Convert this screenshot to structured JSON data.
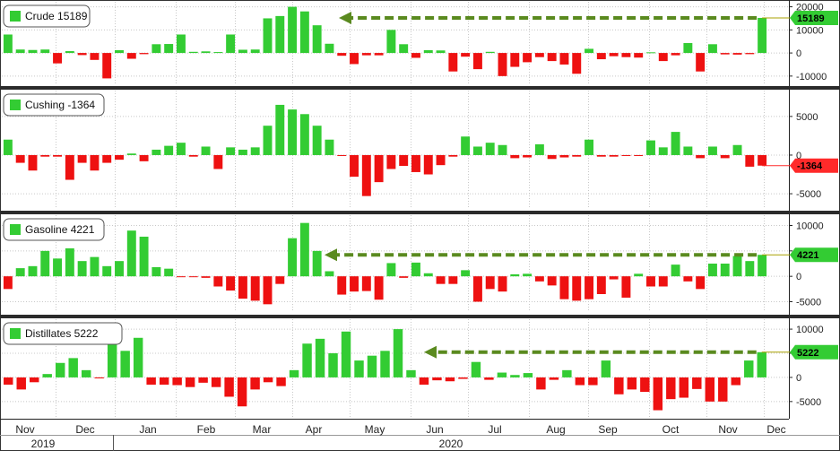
{
  "chart_data": {
    "type": "bar",
    "x_axis": {
      "months": [
        "Nov",
        "Dec",
        "Jan",
        "Feb",
        "Mar",
        "Apr",
        "May",
        "Jun",
        "Jul",
        "Aug",
        "Sep",
        "Oct",
        "Nov",
        "Dec"
      ],
      "years": [
        "2019",
        "2020"
      ]
    },
    "colors": {
      "positive": "#33cc33",
      "negative": "#ee1111",
      "arrow": "#5a8a1f",
      "bg": "#ffffff"
    },
    "panels": [
      {
        "name": "Crude",
        "label": "Crude  15189",
        "latest": "15189",
        "ylim": [
          -12000,
          21000
        ],
        "yticks": [
          -10000,
          0,
          10000,
          20000
        ],
        "arrow": true,
        "values": [
          8000,
          1500,
          1300,
          1500,
          -4500,
          800,
          -900,
          -3000,
          -11000,
          1200,
          -2500,
          -500,
          3800,
          3900,
          8000,
          500,
          700,
          400,
          8000,
          1400,
          1500,
          15000,
          16000,
          20000,
          18000,
          12000,
          4000,
          -1200,
          -4800,
          -1000,
          -1000,
          10000,
          3800,
          -2100,
          1200,
          1100,
          -8000,
          -1600,
          -7000,
          500,
          -10000,
          -6000,
          -4000,
          -1800,
          -3500,
          -5000,
          -9000,
          1800,
          -2700,
          -1400,
          -1800,
          -2000,
          300,
          -3500,
          -1000,
          4300,
          -8000,
          3800,
          -600,
          -700,
          -500,
          15189
        ]
      },
      {
        "name": "Cushing",
        "label": "Cushing -1364",
        "latest": "-1364",
        "ylim": [
          -6500,
          8000
        ],
        "yticks": [
          -5000,
          0,
          5000
        ],
        "arrow": false,
        "values": [
          2000,
          -1000,
          -2000,
          -200,
          -200,
          -3200,
          -1000,
          -2000,
          -1000,
          -600,
          200,
          -800,
          700,
          1200,
          1600,
          -200,
          1100,
          -1800,
          1000,
          700,
          1000,
          3800,
          6500,
          5900,
          5300,
          3800,
          2000,
          -100,
          -2800,
          -5300,
          -3500,
          -1800,
          -1400,
          -2200,
          -2500,
          -1300,
          -200,
          2400,
          1100,
          1600,
          1300,
          -400,
          -300,
          1400,
          -500,
          -300,
          -200,
          2000,
          -200,
          -200,
          -100,
          -100,
          1900,
          1000,
          3000,
          1100,
          -400,
          1100,
          -400,
          1300,
          -1500,
          -1364
        ]
      },
      {
        "name": "Gasoline",
        "label": "Gasoline  4221",
        "latest": "4221",
        "ylim": [
          -6500,
          11500
        ],
        "yticks": [
          -5000,
          0,
          5000,
          10000
        ],
        "arrow": true,
        "values": [
          -2500,
          1600,
          2000,
          5000,
          3500,
          5500,
          3000,
          3800,
          2000,
          3000,
          9000,
          7800,
          1800,
          1500,
          -100,
          -100,
          -300,
          -2000,
          -2800,
          -4400,
          -4800,
          -5500,
          -1500,
          7500,
          10500,
          5000,
          1000,
          -3600,
          -3000,
          -2900,
          -4600,
          2600,
          -300,
          2700,
          600,
          -1500,
          -1500,
          1200,
          -5000,
          -2500,
          -3000,
          400,
          500,
          -1000,
          -1800,
          -4500,
          -4800,
          -4500,
          -3500,
          -600,
          -4200,
          500,
          -2000,
          -2000,
          2300,
          -1000,
          -2500,
          2500,
          2500,
          4000,
          3000,
          4221
        ]
      },
      {
        "name": "Distillates",
        "label": "Distillates  5222",
        "latest": "5222",
        "ylim": [
          -8000,
          11500
        ],
        "yticks": [
          -5000,
          0,
          5000,
          10000
        ],
        "arrow": true,
        "values": [
          -1500,
          -2500,
          -1000,
          700,
          3000,
          4000,
          1500,
          -200,
          8000,
          5500,
          8200,
          -1500,
          -1500,
          -1600,
          -2000,
          -1100,
          -2000,
          -4000,
          -6000,
          -2500,
          -1000,
          -1800,
          1500,
          7000,
          8000,
          5000,
          9500,
          3500,
          4500,
          5500,
          10000,
          1500,
          -1500,
          -600,
          -800,
          -300,
          3200,
          -500,
          1000,
          500,
          900,
          -2500,
          -500,
          1500,
          -1600,
          -1600,
          3500,
          -3500,
          -2500,
          -3000,
          -6800,
          -4500,
          -4200,
          -2400,
          -5000,
          -5000,
          -1600,
          3500,
          5222
        ]
      }
    ]
  }
}
